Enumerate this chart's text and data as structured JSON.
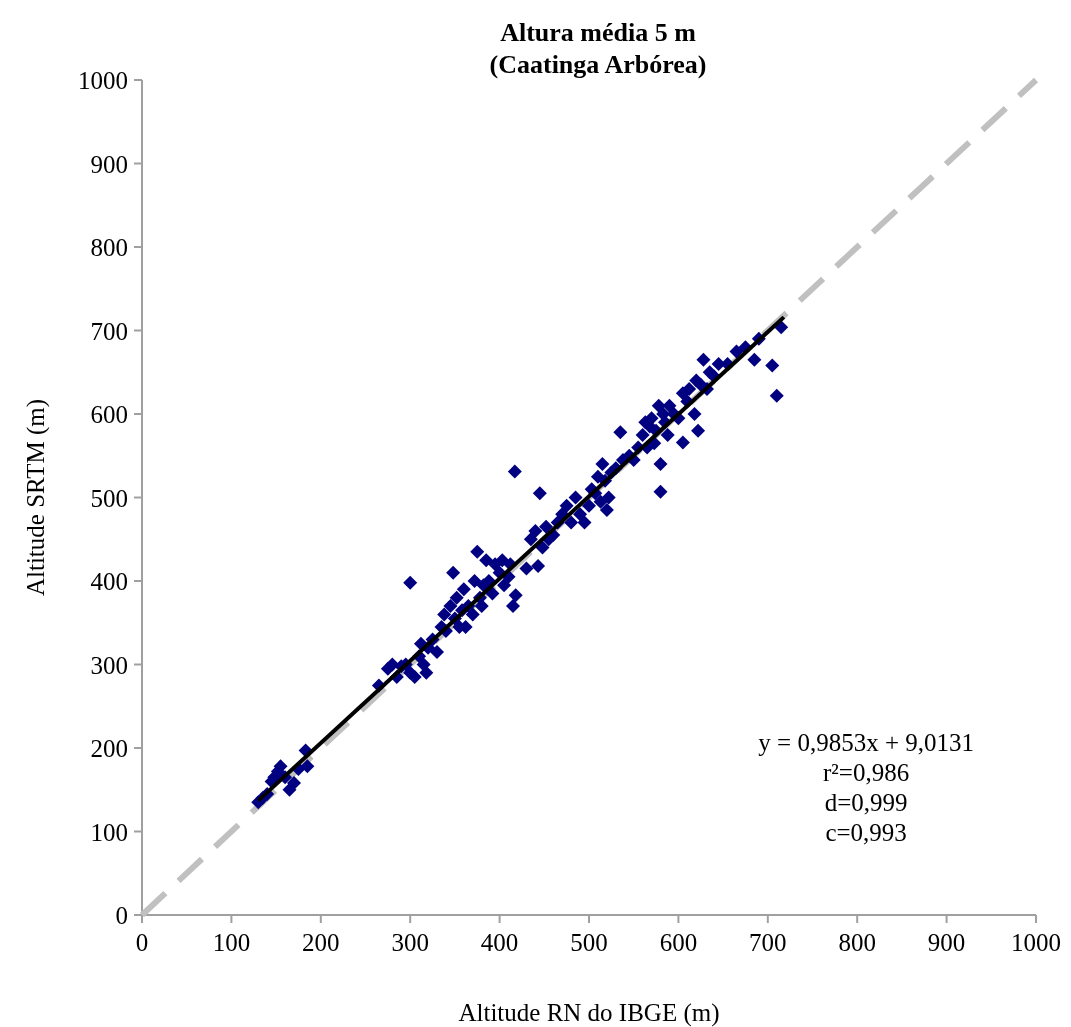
{
  "chart_data": {
    "type": "scatter",
    "title": "Altura média 5 m",
    "subtitle": "(Caatinga Arbórea)",
    "xlabel": "Altitude RN do IBGE (m)",
    "ylabel": "Altitude SRTM (m)",
    "xlim": [
      0,
      1000
    ],
    "ylim": [
      0,
      1000
    ],
    "xticks": [
      0,
      100,
      200,
      300,
      400,
      500,
      600,
      700,
      800,
      900,
      1000
    ],
    "yticks": [
      0,
      100,
      200,
      300,
      400,
      500,
      600,
      700,
      800,
      900,
      1000
    ],
    "grid": false,
    "marker": "diamond",
    "annotations": [
      "y = 0,9853x + 9,0131",
      "r²=0,986",
      "d=0,999",
      "c=0,993"
    ],
    "series": [
      {
        "type": "line",
        "color": "#c0c0c0",
        "line_style": "dashed",
        "marker": "none",
        "x": [
          0,
          1000
        ],
        "values": [
          0,
          1000
        ]
      },
      {
        "color": "#000080",
        "x": [
          130,
          135,
          140,
          145,
          148,
          152,
          155,
          160,
          165,
          170,
          175,
          183,
          185,
          265,
          275,
          280,
          285,
          290,
          295,
          300,
          300,
          305,
          310,
          312,
          315,
          318,
          320,
          325,
          330,
          335,
          338,
          340,
          345,
          348,
          350,
          352,
          355,
          358,
          360,
          362,
          365,
          370,
          372,
          375,
          378,
          380,
          382,
          385,
          388,
          392,
          395,
          400,
          403,
          405,
          410,
          412,
          415,
          418,
          417,
          430,
          435,
          440,
          443,
          445,
          448,
          452,
          455,
          460,
          465,
          470,
          475,
          480,
          485,
          490,
          495,
          500,
          503,
          507,
          510,
          513,
          515,
          518,
          520,
          522,
          525,
          530,
          535,
          538,
          545,
          550,
          555,
          560,
          563,
          565,
          568,
          570,
          573,
          575,
          578,
          580,
          580,
          583,
          585,
          588,
          590,
          595,
          600,
          605,
          605,
          610,
          612,
          618,
          620,
          622,
          625,
          628,
          632,
          635,
          640,
          645,
          655,
          665,
          675,
          685,
          690,
          705,
          710,
          715
        ],
        "values": [
          135,
          140,
          145,
          160,
          165,
          172,
          178,
          165,
          150,
          158,
          175,
          197,
          178,
          275,
          295,
          300,
          285,
          298,
          300,
          290,
          398,
          285,
          310,
          325,
          300,
          290,
          320,
          330,
          315,
          345,
          360,
          340,
          370,
          410,
          355,
          380,
          345,
          365,
          390,
          345,
          370,
          360,
          400,
          435,
          380,
          370,
          395,
          425,
          400,
          385,
          420,
          410,
          425,
          395,
          405,
          420,
          370,
          383,
          531,
          415,
          450,
          460,
          418,
          505,
          440,
          465,
          450,
          455,
          470,
          480,
          490,
          470,
          500,
          480,
          470,
          490,
          510,
          505,
          525,
          495,
          540,
          520,
          485,
          500,
          530,
          535,
          578,
          545,
          550,
          545,
          560,
          575,
          590,
          560,
          585,
          595,
          565,
          580,
          610,
          540,
          507,
          600,
          590,
          575,
          610,
          600,
          595,
          566,
          625,
          615,
          630,
          600,
          640,
          580,
          635,
          665,
          630,
          650,
          645,
          660,
          660,
          675,
          680,
          665,
          690,
          658,
          622,
          704
        ]
      },
      {
        "type": "line",
        "color": "#000000",
        "line_style": "solid",
        "marker": "none",
        "x": [
          130,
          718
        ],
        "values": [
          137,
          716
        ]
      }
    ]
  }
}
